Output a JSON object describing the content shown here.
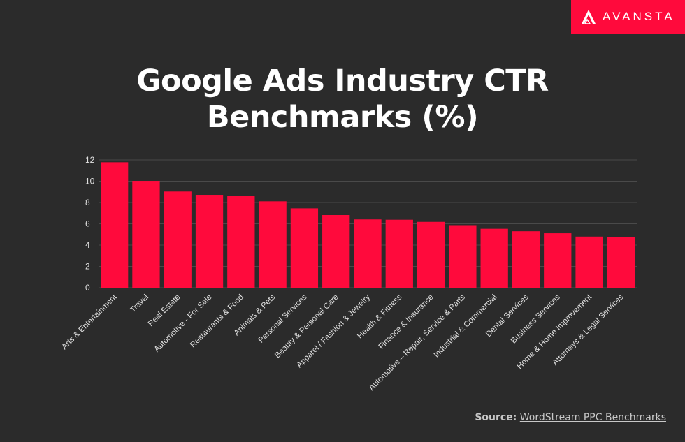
{
  "brand": {
    "name": "AVANSTA",
    "accent_color": "#ff0a3c",
    "background_color": "#2b2b2b"
  },
  "title_line1": "Google Ads Industry CTR",
  "title_line2": "Benchmarks (%)",
  "source": {
    "label": "Source:",
    "link_text": "WordStream PPC Benchmarks"
  },
  "chart_data": {
    "type": "bar",
    "title": "Google Ads Industry CTR Benchmarks (%)",
    "xlabel": "",
    "ylabel": "",
    "ylim": [
      0,
      12
    ],
    "yticks": [
      0,
      2,
      4,
      6,
      8,
      10,
      12
    ],
    "grid": true,
    "bar_color": "#ff0a3c",
    "categories": [
      "Arts & Entertainment",
      "Travel",
      "Real Estate",
      "Automotive - For Sale",
      "Restaurants & Food",
      "Animals & Pets",
      "Personal Services",
      "Beauty & Personal Care",
      "Apparel / Fashion & Jewelry",
      "Health & Fitness",
      "Finance & Insurance",
      "Automotive – Repair, Service & Parts",
      "Industrial & Commercial",
      "Dental Services",
      "Business Services",
      "Home & Home Improvement",
      "Attorneys & Legal Services"
    ],
    "values": [
      11.78,
      10.03,
      9.03,
      8.72,
      8.65,
      8.11,
      7.45,
      6.82,
      6.41,
      6.38,
      6.18,
      5.87,
      5.53,
      5.3,
      5.11,
      4.8,
      4.76
    ]
  }
}
